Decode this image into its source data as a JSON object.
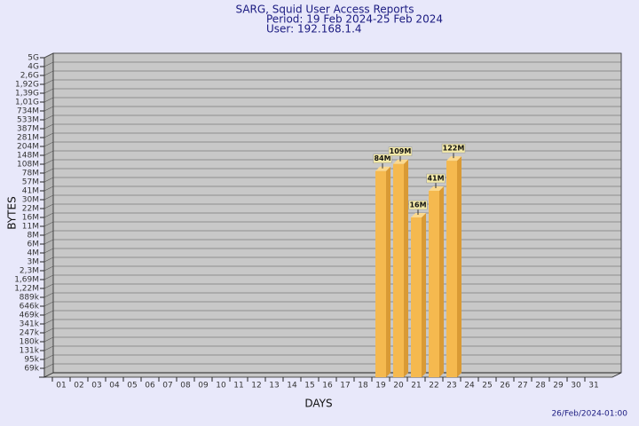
{
  "chart_data": {
    "type": "bar",
    "title": "SARG, Squid User Access Reports",
    "subtitle": "Period: 19 Feb 2024-25 Feb 2024",
    "user": "User: 192.168.1.4",
    "x_label": "DAYS",
    "y_label": "BYTES",
    "footer": "26/Feb/2024-01:00",
    "categories": [
      "01",
      "02",
      "03",
      "04",
      "05",
      "06",
      "07",
      "08",
      "09",
      "10",
      "11",
      "12",
      "13",
      "14",
      "15",
      "16",
      "17",
      "18",
      "19",
      "20",
      "21",
      "22",
      "23",
      "24",
      "25",
      "26",
      "27",
      "28",
      "29",
      "30",
      "31"
    ],
    "values": [
      null,
      null,
      null,
      null,
      null,
      null,
      null,
      null,
      null,
      null,
      null,
      null,
      null,
      null,
      null,
      null,
      null,
      null,
      84000000,
      109000000,
      16000000,
      41000000,
      122000000,
      null,
      null,
      null,
      null,
      null,
      null,
      null,
      null
    ],
    "value_labels": [
      null,
      null,
      null,
      null,
      null,
      null,
      null,
      null,
      null,
      null,
      null,
      null,
      null,
      null,
      null,
      null,
      null,
      null,
      "84M",
      "109M",
      "16M",
      "41M",
      "122M",
      null,
      null,
      null,
      null,
      null,
      null,
      null,
      null
    ],
    "color": "#f5b94f",
    "ylim": [
      50000,
      5000000000
    ],
    "yticks": [
      {
        "value": 69000,
        "label": "69k"
      },
      {
        "value": 95000,
        "label": "95k"
      },
      {
        "value": 131000,
        "label": "131k"
      },
      {
        "value": 180000,
        "label": "180k"
      },
      {
        "value": 247000,
        "label": "247k"
      },
      {
        "value": 341000,
        "label": "341k"
      },
      {
        "value": 469000,
        "label": "469k"
      },
      {
        "value": 646000,
        "label": "646k"
      },
      {
        "value": 889000,
        "label": "889k"
      },
      {
        "value": 1220000,
        "label": "1,22M"
      },
      {
        "value": 1690000,
        "label": "1,69M"
      },
      {
        "value": 2300000,
        "label": "2,3M"
      },
      {
        "value": 3000000,
        "label": "3M"
      },
      {
        "value": 4000000,
        "label": "4M"
      },
      {
        "value": 6000000,
        "label": "6M"
      },
      {
        "value": 8000000,
        "label": "8M"
      },
      {
        "value": 11000000,
        "label": "11M"
      },
      {
        "value": 16000000,
        "label": "16M"
      },
      {
        "value": 22000000,
        "label": "22M"
      },
      {
        "value": 30000000,
        "label": "30M"
      },
      {
        "value": 41000000,
        "label": "41M"
      },
      {
        "value": 57000000,
        "label": "57M"
      },
      {
        "value": 78000000,
        "label": "78M"
      },
      {
        "value": 108000000,
        "label": "108M"
      },
      {
        "value": 148000000,
        "label": "148M"
      },
      {
        "value": 204000000,
        "label": "204M"
      },
      {
        "value": 281000000,
        "label": "281M"
      },
      {
        "value": 387000000,
        "label": "387M"
      },
      {
        "value": 533000000,
        "label": "533M"
      },
      {
        "value": 734000000,
        "label": "734M"
      },
      {
        "value": 1010000000,
        "label": "1,01G"
      },
      {
        "value": 1390000000,
        "label": "1,39G"
      },
      {
        "value": 1920000000,
        "label": "1,92G"
      },
      {
        "value": 2600000000,
        "label": "2,6G"
      },
      {
        "value": 4000000000,
        "label": "4G"
      },
      {
        "value": 5000000000,
        "label": "5G"
      }
    ],
    "grid": true
  }
}
